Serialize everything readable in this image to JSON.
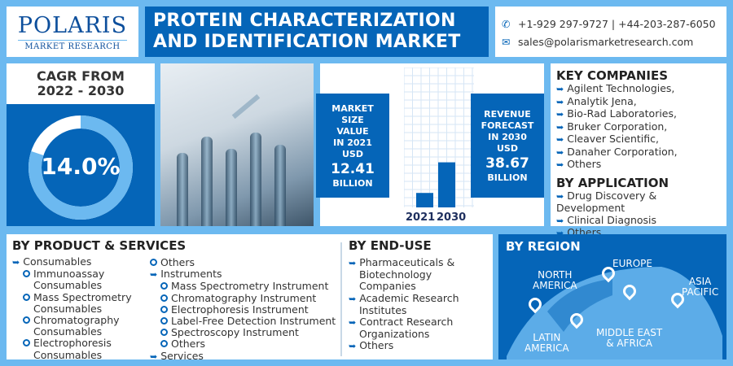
{
  "logo": {
    "name": "POLARIS",
    "sub": "MARKET RESEARCH"
  },
  "title": {
    "line1": "PROTEIN CHARACTERIZATION",
    "line2": "AND IDENTIFICATION MARKET"
  },
  "contact": {
    "phone": "+1-929 297-9727 | +44-203-287-6050",
    "email": "sales@polarismarketresearch.com",
    "phone_icon": "phone-icon",
    "email_icon": "mail-icon"
  },
  "cagr": {
    "label_line1": "CAGR FROM",
    "label_line2": "2022 - 2030",
    "value": "14.0%",
    "ring_fill_percent": 80
  },
  "market": {
    "left": {
      "lines": [
        "MARKET",
        "SIZE",
        "VALUE",
        "IN 2021",
        "USD"
      ],
      "value": "12.41",
      "unit": "BILLION"
    },
    "right": {
      "lines": [
        "REVENUE",
        "FORECAST",
        "IN 2030",
        "USD"
      ],
      "value": "38.67",
      "unit": "BILLION"
    }
  },
  "chart_data": {
    "type": "bar",
    "categories": [
      "2021",
      "2030"
    ],
    "values": [
      12.41,
      38.67
    ],
    "title": "",
    "xlabel": "",
    "ylabel": ""
  },
  "key_companies": {
    "heading": "KEY COMPANIES",
    "items": [
      "Agilent Technologies,",
      "Analytik Jena,",
      "Bio-Rad Laboratories,",
      "Bruker Corporation,",
      "Cleaver Scientific,",
      "Danaher Corporation,",
      "Others"
    ]
  },
  "by_application": {
    "heading": "BY APPLICATION",
    "items": [
      "Drug Discovery & Development",
      "Clinical Diagnosis",
      "Others"
    ]
  },
  "by_product": {
    "heading": "BY PRODUCT & SERVICES",
    "consumables": "Consumables",
    "consumable_items": [
      [
        "Immunoassay",
        "Consumables"
      ],
      [
        "Mass Spectrometry",
        "Consumables"
      ],
      [
        "Chromatography",
        "Consumables"
      ],
      [
        "Electrophoresis",
        "Consumables"
      ],
      [
        "Others"
      ]
    ],
    "instruments": "Instruments",
    "instrument_items": [
      "Mass Spectrometry Instrument",
      "Chromatography Instrument",
      "Electrophoresis Instrument",
      "Label-Free Detection Instrument",
      "Spectroscopy Instrument",
      "Others"
    ],
    "services": "Services"
  },
  "by_end_use": {
    "heading": "BY END-USE",
    "items": [
      [
        "Pharmaceuticals &",
        "Biotechnology",
        "Companies"
      ],
      [
        "Academic Research",
        "Institutes"
      ],
      [
        "Contract Research",
        "Organizations"
      ],
      [
        "Others"
      ]
    ]
  },
  "by_region": {
    "heading": "BY REGION",
    "regions": [
      [
        "NORTH",
        "AMERICA"
      ],
      [
        "EUROPE"
      ],
      [
        "ASIA",
        "PACIFIC"
      ],
      [
        "LATIN",
        "AMERICA"
      ],
      [
        "MIDDLE EAST",
        "& AFRICA"
      ]
    ]
  },
  "colors": {
    "dark_blue": "#0565b8",
    "light_blue": "#6cb9f0"
  }
}
